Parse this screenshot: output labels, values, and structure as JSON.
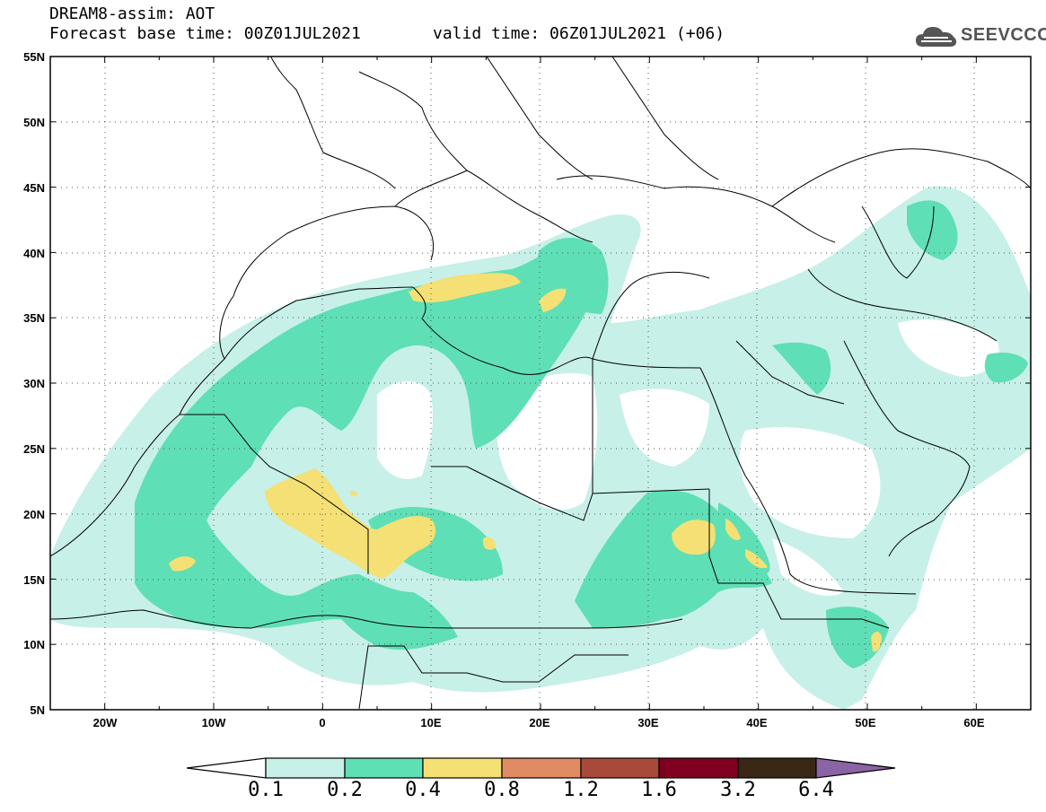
{
  "title": {
    "model": "DREAM8-assim: AOT",
    "base_time": "Forecast base time: 00Z01JUL2021",
    "valid_time": "valid time: 06Z01JUL2021 (+06)"
  },
  "logo": {
    "text": "SEEVCCC",
    "icon": "cloud-icon"
  },
  "map": {
    "lon_range": [
      -25,
      65
    ],
    "lat_range": [
      5,
      55
    ],
    "lat_labels": [
      "55N",
      "50N",
      "45N",
      "40N",
      "35N",
      "30N",
      "25N",
      "20N",
      "15N",
      "10N",
      "5N"
    ],
    "lon_labels": [
      "20W",
      "10W",
      "0",
      "10E",
      "20E",
      "30E",
      "40E",
      "50E",
      "60E"
    ]
  },
  "colorbar": {
    "levels": [
      "0.1",
      "0.2",
      "0.4",
      "0.8",
      "1.2",
      "1.6",
      "3.2",
      "6.4"
    ],
    "colors": [
      "#ffffff",
      "#c7f0e8",
      "#5fdfb5",
      "#f4e074",
      "#e08b64",
      "#a84a3a",
      "#800020",
      "#3a2716",
      "#8a64a4"
    ]
  }
}
